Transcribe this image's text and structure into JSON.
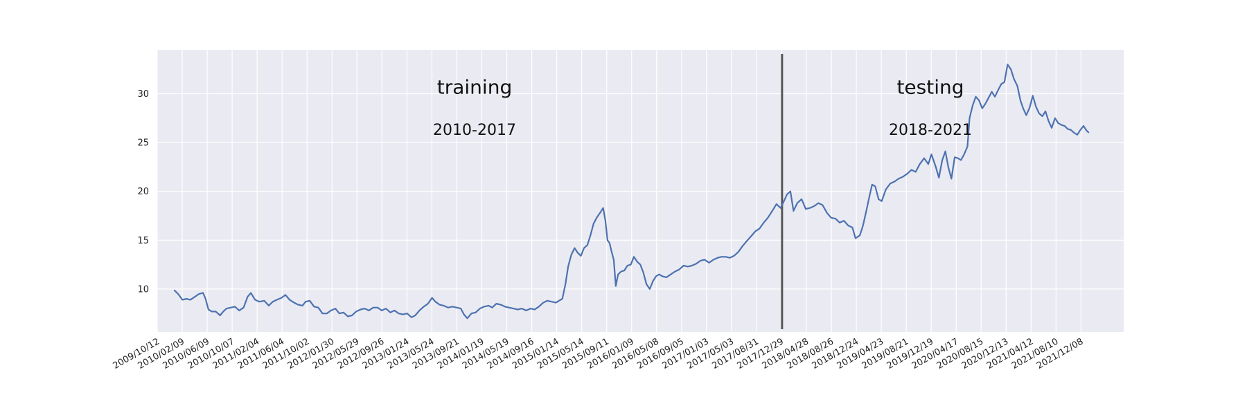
{
  "chart_data": {
    "type": "line",
    "title": "",
    "xlabel": "",
    "ylabel": "",
    "grid": true,
    "colors": {
      "background": "#eaeaf2",
      "line": "#4c72b0",
      "split_line": "#555555",
      "grid": "#ffffff"
    },
    "xlim": [
      "2009-10-12",
      "2022-07-01"
    ],
    "ylim": [
      5.6,
      34.5
    ],
    "y_ticks": [
      10,
      15,
      20,
      25,
      30
    ],
    "x_tick_labels": [
      "2009/10/12",
      "2010/02/09",
      "2010/06/09",
      "2010/10/07",
      "2011/02/04",
      "2011/06/04",
      "2011/10/02",
      "2012/01/30",
      "2012/05/29",
      "2012/09/26",
      "2013/01/24",
      "2013/05/24",
      "2013/09/21",
      "2014/01/19",
      "2014/05/19",
      "2014/09/16",
      "2015/01/14",
      "2015/05/14",
      "2015/09/11",
      "2016/01/09",
      "2016/05/08",
      "2016/09/05",
      "2017/01/03",
      "2017/05/03",
      "2017/08/31",
      "2017/12/29",
      "2018/04/28",
      "2018/08/26",
      "2018/12/24",
      "2019/04/23",
      "2019/08/21",
      "2019/12/19",
      "2020/04/17",
      "2020/08/15",
      "2020/12/13",
      "2021/04/12",
      "2021/08/10",
      "2021/12/08"
    ],
    "split_date": "2018-01-01",
    "annotations": [
      {
        "id": "train",
        "title": "training",
        "subtitle": "2010-2017",
        "date": "2013-12-15",
        "title_y": 30.0,
        "subtitle_y": 25.8
      },
      {
        "id": "test",
        "title": "testing",
        "subtitle": "2018-2021",
        "date": "2019-12-15",
        "title_y": 30.0,
        "subtitle_y": 25.8
      }
    ],
    "series": [
      {
        "points": [
          [
            "2010-01-01",
            9.9
          ],
          [
            "2010-01-20",
            9.5
          ],
          [
            "2010-02-10",
            8.9
          ],
          [
            "2010-03-01",
            9.0
          ],
          [
            "2010-03-20",
            8.9
          ],
          [
            "2010-04-10",
            9.2
          ],
          [
            "2010-05-01",
            9.5
          ],
          [
            "2010-05-20",
            9.6
          ],
          [
            "2010-06-01",
            9.0
          ],
          [
            "2010-06-15",
            7.9
          ],
          [
            "2010-07-01",
            7.7
          ],
          [
            "2010-07-20",
            7.7
          ],
          [
            "2010-08-10",
            7.3
          ],
          [
            "2010-08-25",
            7.7
          ],
          [
            "2010-09-10",
            8.0
          ],
          [
            "2010-10-01",
            8.1
          ],
          [
            "2010-10-20",
            8.2
          ],
          [
            "2010-11-10",
            7.8
          ],
          [
            "2010-12-01",
            8.1
          ],
          [
            "2010-12-20",
            9.2
          ],
          [
            "2011-01-05",
            9.6
          ],
          [
            "2011-01-25",
            8.9
          ],
          [
            "2011-02-15",
            8.7
          ],
          [
            "2011-03-10",
            8.8
          ],
          [
            "2011-04-01",
            8.3
          ],
          [
            "2011-04-20",
            8.7
          ],
          [
            "2011-05-10",
            8.9
          ],
          [
            "2011-06-01",
            9.1
          ],
          [
            "2011-06-20",
            9.4
          ],
          [
            "2011-07-10",
            8.9
          ],
          [
            "2011-08-01",
            8.6
          ],
          [
            "2011-08-20",
            8.4
          ],
          [
            "2011-09-10",
            8.3
          ],
          [
            "2011-09-25",
            8.7
          ],
          [
            "2011-10-15",
            8.8
          ],
          [
            "2011-11-05",
            8.2
          ],
          [
            "2011-11-25",
            8.1
          ],
          [
            "2011-12-15",
            7.5
          ],
          [
            "2012-01-05",
            7.5
          ],
          [
            "2012-01-25",
            7.8
          ],
          [
            "2012-02-15",
            8.0
          ],
          [
            "2012-03-05",
            7.5
          ],
          [
            "2012-03-25",
            7.6
          ],
          [
            "2012-04-15",
            7.2
          ],
          [
            "2012-05-05",
            7.3
          ],
          [
            "2012-05-25",
            7.7
          ],
          [
            "2012-06-15",
            7.9
          ],
          [
            "2012-07-05",
            8.0
          ],
          [
            "2012-07-25",
            7.8
          ],
          [
            "2012-08-15",
            8.1
          ],
          [
            "2012-09-05",
            8.1
          ],
          [
            "2012-09-25",
            7.8
          ],
          [
            "2012-10-15",
            8.0
          ],
          [
            "2012-11-05",
            7.6
          ],
          [
            "2012-11-25",
            7.8
          ],
          [
            "2012-12-15",
            7.5
          ],
          [
            "2013-01-05",
            7.4
          ],
          [
            "2013-01-25",
            7.5
          ],
          [
            "2013-02-15",
            7.1
          ],
          [
            "2013-03-05",
            7.3
          ],
          [
            "2013-03-25",
            7.8
          ],
          [
            "2013-04-15",
            8.2
          ],
          [
            "2013-05-05",
            8.5
          ],
          [
            "2013-05-25",
            9.1
          ],
          [
            "2013-06-10",
            8.7
          ],
          [
            "2013-06-30",
            8.4
          ],
          [
            "2013-07-20",
            8.3
          ],
          [
            "2013-08-10",
            8.1
          ],
          [
            "2013-08-30",
            8.2
          ],
          [
            "2013-09-20",
            8.1
          ],
          [
            "2013-10-10",
            8.0
          ],
          [
            "2013-10-25",
            7.4
          ],
          [
            "2013-11-10",
            7.0
          ],
          [
            "2013-11-30",
            7.5
          ],
          [
            "2013-12-20",
            7.6
          ],
          [
            "2014-01-10",
            8.0
          ],
          [
            "2014-01-30",
            8.2
          ],
          [
            "2014-02-20",
            8.3
          ],
          [
            "2014-03-10",
            8.1
          ],
          [
            "2014-03-30",
            8.5
          ],
          [
            "2014-04-20",
            8.4
          ],
          [
            "2014-05-10",
            8.2
          ],
          [
            "2014-05-30",
            8.1
          ],
          [
            "2014-06-20",
            8.0
          ],
          [
            "2014-07-10",
            7.9
          ],
          [
            "2014-07-30",
            8.0
          ],
          [
            "2014-08-20",
            7.8
          ],
          [
            "2014-09-10",
            8.0
          ],
          [
            "2014-09-30",
            7.9
          ],
          [
            "2014-10-20",
            8.2
          ],
          [
            "2014-11-10",
            8.6
          ],
          [
            "2014-11-30",
            8.8
          ],
          [
            "2014-12-20",
            8.7
          ],
          [
            "2015-01-10",
            8.6
          ],
          [
            "2015-01-25",
            8.8
          ],
          [
            "2015-02-10",
            9.0
          ],
          [
            "2015-02-25",
            10.5
          ],
          [
            "2015-03-10",
            12.3
          ],
          [
            "2015-03-25",
            13.5
          ],
          [
            "2015-04-10",
            14.2
          ],
          [
            "2015-04-25",
            13.7
          ],
          [
            "2015-05-10",
            13.4
          ],
          [
            "2015-05-25",
            14.2
          ],
          [
            "2015-06-10",
            14.5
          ],
          [
            "2015-06-25",
            15.5
          ],
          [
            "2015-07-10",
            16.7
          ],
          [
            "2015-07-25",
            17.3
          ],
          [
            "2015-08-10",
            17.8
          ],
          [
            "2015-08-25",
            18.3
          ],
          [
            "2015-09-05",
            17.0
          ],
          [
            "2015-09-15",
            15.0
          ],
          [
            "2015-09-25",
            14.7
          ],
          [
            "2015-10-05",
            13.8
          ],
          [
            "2015-10-15",
            13.0
          ],
          [
            "2015-10-25",
            10.3
          ],
          [
            "2015-11-05",
            11.5
          ],
          [
            "2015-11-20",
            11.8
          ],
          [
            "2015-12-05",
            11.9
          ],
          [
            "2015-12-20",
            12.4
          ],
          [
            "2016-01-05",
            12.5
          ],
          [
            "2016-01-20",
            13.3
          ],
          [
            "2016-02-05",
            12.8
          ],
          [
            "2016-02-20",
            12.5
          ],
          [
            "2016-03-05",
            11.7
          ],
          [
            "2016-03-20",
            10.5
          ],
          [
            "2016-04-05",
            10.0
          ],
          [
            "2016-04-20",
            10.8
          ],
          [
            "2016-05-05",
            11.3
          ],
          [
            "2016-05-20",
            11.5
          ],
          [
            "2016-06-05",
            11.3
          ],
          [
            "2016-06-25",
            11.2
          ],
          [
            "2016-07-15",
            11.5
          ],
          [
            "2016-08-05",
            11.8
          ],
          [
            "2016-08-25",
            12.0
          ],
          [
            "2016-09-15",
            12.4
          ],
          [
            "2016-10-05",
            12.3
          ],
          [
            "2016-10-25",
            12.4
          ],
          [
            "2016-11-15",
            12.6
          ],
          [
            "2016-12-05",
            12.9
          ],
          [
            "2016-12-25",
            13.0
          ],
          [
            "2017-01-15",
            12.7
          ],
          [
            "2017-02-05",
            13.0
          ],
          [
            "2017-02-25",
            13.2
          ],
          [
            "2017-03-15",
            13.3
          ],
          [
            "2017-04-05",
            13.3
          ],
          [
            "2017-04-25",
            13.2
          ],
          [
            "2017-05-15",
            13.4
          ],
          [
            "2017-06-05",
            13.8
          ],
          [
            "2017-06-25",
            14.4
          ],
          [
            "2017-07-15",
            14.9
          ],
          [
            "2017-08-05",
            15.4
          ],
          [
            "2017-08-25",
            15.9
          ],
          [
            "2017-09-15",
            16.2
          ],
          [
            "2017-10-05",
            16.8
          ],
          [
            "2017-10-25",
            17.3
          ],
          [
            "2017-11-15",
            18.0
          ],
          [
            "2017-12-05",
            18.7
          ],
          [
            "2017-12-25",
            18.3
          ],
          [
            "2018-01-10",
            19.0
          ],
          [
            "2018-01-25",
            19.7
          ],
          [
            "2018-02-10",
            20.0
          ],
          [
            "2018-02-25",
            18.0
          ],
          [
            "2018-03-15",
            18.8
          ],
          [
            "2018-04-05",
            19.2
          ],
          [
            "2018-04-25",
            18.2
          ],
          [
            "2018-05-15",
            18.3
          ],
          [
            "2018-06-05",
            18.5
          ],
          [
            "2018-06-25",
            18.8
          ],
          [
            "2018-07-15",
            18.6
          ],
          [
            "2018-08-05",
            17.8
          ],
          [
            "2018-08-25",
            17.3
          ],
          [
            "2018-09-15",
            17.2
          ],
          [
            "2018-10-05",
            16.8
          ],
          [
            "2018-10-25",
            17.0
          ],
          [
            "2018-11-15",
            16.5
          ],
          [
            "2018-12-05",
            16.3
          ],
          [
            "2018-12-20",
            15.2
          ],
          [
            "2019-01-10",
            15.5
          ],
          [
            "2019-01-25",
            16.5
          ],
          [
            "2019-02-10",
            18.0
          ],
          [
            "2019-02-25",
            19.5
          ],
          [
            "2019-03-10",
            20.7
          ],
          [
            "2019-03-25",
            20.5
          ],
          [
            "2019-04-10",
            19.2
          ],
          [
            "2019-04-25",
            19.0
          ],
          [
            "2019-05-15",
            20.2
          ],
          [
            "2019-06-05",
            20.8
          ],
          [
            "2019-06-25",
            21.0
          ],
          [
            "2019-07-15",
            21.3
          ],
          [
            "2019-08-05",
            21.5
          ],
          [
            "2019-08-25",
            21.8
          ],
          [
            "2019-09-15",
            22.2
          ],
          [
            "2019-10-05",
            22.0
          ],
          [
            "2019-10-25",
            22.8
          ],
          [
            "2019-11-15",
            23.4
          ],
          [
            "2019-12-05",
            22.8
          ],
          [
            "2019-12-20",
            23.8
          ],
          [
            "2020-01-10",
            22.5
          ],
          [
            "2020-01-25",
            21.4
          ],
          [
            "2020-02-10",
            23.2
          ],
          [
            "2020-02-25",
            24.1
          ],
          [
            "2020-03-10",
            22.5
          ],
          [
            "2020-03-25",
            21.3
          ],
          [
            "2020-04-10",
            23.5
          ],
          [
            "2020-04-25",
            23.4
          ],
          [
            "2020-05-10",
            23.2
          ],
          [
            "2020-05-25",
            23.8
          ],
          [
            "2020-06-10",
            24.6
          ],
          [
            "2020-06-20",
            27.5
          ],
          [
            "2020-07-05",
            28.8
          ],
          [
            "2020-07-20",
            29.7
          ],
          [
            "2020-08-05",
            29.3
          ],
          [
            "2020-08-20",
            28.5
          ],
          [
            "2020-09-05",
            29.0
          ],
          [
            "2020-09-20",
            29.6
          ],
          [
            "2020-10-05",
            30.2
          ],
          [
            "2020-10-20",
            29.7
          ],
          [
            "2020-11-05",
            30.4
          ],
          [
            "2020-11-20",
            31.0
          ],
          [
            "2020-12-05",
            31.2
          ],
          [
            "2020-12-20",
            33.0
          ],
          [
            "2021-01-05",
            32.5
          ],
          [
            "2021-01-20",
            31.5
          ],
          [
            "2021-02-05",
            30.8
          ],
          [
            "2021-02-20",
            29.3
          ],
          [
            "2021-03-05",
            28.5
          ],
          [
            "2021-03-20",
            27.8
          ],
          [
            "2021-04-05",
            28.6
          ],
          [
            "2021-04-20",
            29.8
          ],
          [
            "2021-05-05",
            28.7
          ],
          [
            "2021-05-20",
            28.0
          ],
          [
            "2021-06-05",
            27.7
          ],
          [
            "2021-06-20",
            28.2
          ],
          [
            "2021-07-05",
            27.2
          ],
          [
            "2021-07-20",
            26.5
          ],
          [
            "2021-08-05",
            27.5
          ],
          [
            "2021-08-20",
            27.0
          ],
          [
            "2021-09-05",
            26.8
          ],
          [
            "2021-09-20",
            26.7
          ],
          [
            "2021-10-05",
            26.4
          ],
          [
            "2021-10-20",
            26.3
          ],
          [
            "2021-11-05",
            26.0
          ],
          [
            "2021-11-20",
            25.8
          ],
          [
            "2021-12-05",
            26.3
          ],
          [
            "2021-12-20",
            26.7
          ],
          [
            "2022-01-05",
            26.2
          ],
          [
            "2022-01-15",
            26.0
          ]
        ]
      }
    ]
  }
}
